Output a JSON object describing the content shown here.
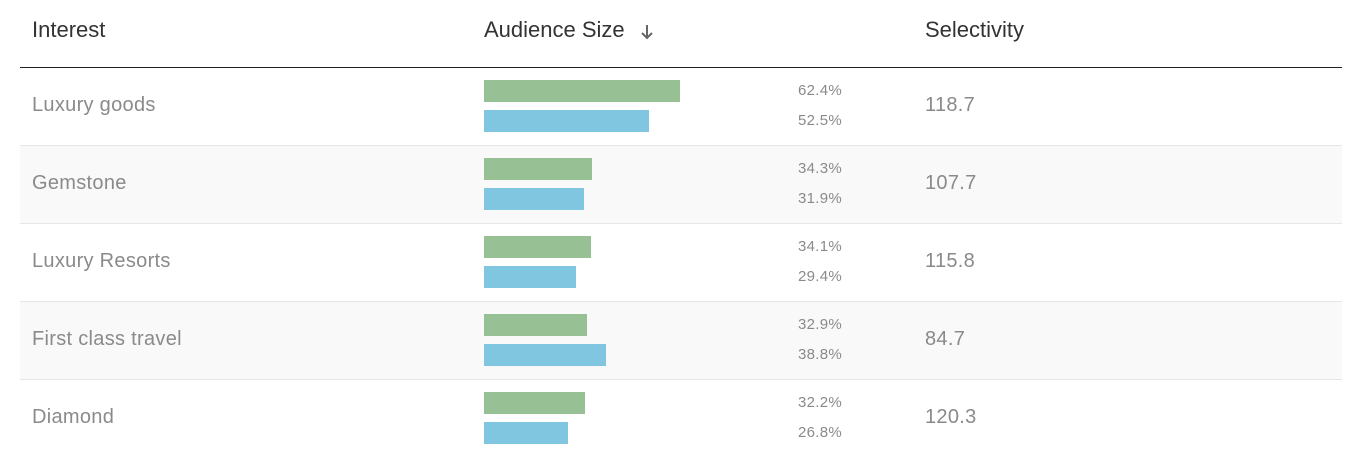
{
  "header": {
    "interest": "Interest",
    "audience_size": "Audience Size",
    "selectivity": "Selectivity"
  },
  "colors": {
    "primary_bar": "#97c095",
    "secondary_bar": "#80c6e0"
  },
  "icons": {
    "sort": "arrow-down-icon"
  },
  "rows": [
    {
      "interest": "Luxury goods",
      "primary_pct": "62.4%",
      "primary_value": 62.4,
      "secondary_pct": "52.5%",
      "secondary_value": 52.5,
      "selectivity": "118.7"
    },
    {
      "interest": "Gemstone",
      "primary_pct": "34.3%",
      "primary_value": 34.3,
      "secondary_pct": "31.9%",
      "secondary_value": 31.9,
      "selectivity": "107.7"
    },
    {
      "interest": "Luxury Resorts",
      "primary_pct": "34.1%",
      "primary_value": 34.1,
      "secondary_pct": "29.4%",
      "secondary_value": 29.4,
      "selectivity": "115.8"
    },
    {
      "interest": "First class travel",
      "primary_pct": "32.9%",
      "primary_value": 32.9,
      "secondary_pct": "38.8%",
      "secondary_value": 38.8,
      "selectivity": "84.7"
    },
    {
      "interest": "Diamond",
      "primary_pct": "32.2%",
      "primary_value": 32.2,
      "secondary_pct": "26.8%",
      "secondary_value": 26.8,
      "selectivity": "120.3"
    }
  ]
}
